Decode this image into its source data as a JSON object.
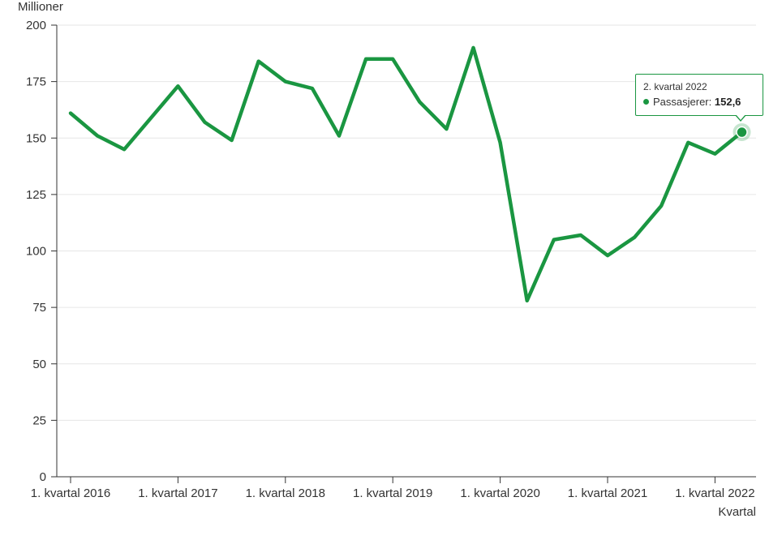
{
  "chart_data": {
    "type": "line",
    "ylabel": "Millioner",
    "xlabel": "Kvartal",
    "ylim": [
      0,
      200
    ],
    "yticks": [
      0,
      25,
      50,
      75,
      100,
      125,
      150,
      175,
      200
    ],
    "grid": "horizontal",
    "x": [
      "1. kvartal 2016",
      "2. kvartal 2016",
      "3. kvartal 2016",
      "4. kvartal 2016",
      "1. kvartal 2017",
      "2. kvartal 2017",
      "3. kvartal 2017",
      "4. kvartal 2017",
      "1. kvartal 2018",
      "2. kvartal 2018",
      "3. kvartal 2018",
      "4. kvartal 2018",
      "1. kvartal 2019",
      "2. kvartal 2019",
      "3. kvartal 2019",
      "4. kvartal 2019",
      "1. kvartal 2020",
      "2. kvartal 2020",
      "3. kvartal 2020",
      "4. kvartal 2020",
      "1. kvartal 2021",
      "2. kvartal 2021",
      "3. kvartal 2021",
      "4. kvartal 2021",
      "1. kvartal 2022",
      "2. kvartal 2022"
    ],
    "xtick_labels": [
      "1. kvartal 2016",
      "1. kvartal 2017",
      "1. kvartal 2018",
      "1. kvartal 2019",
      "1. kvartal 2020",
      "1. kvartal 2021",
      "1. kvartal 2022"
    ],
    "series": [
      {
        "name": "Passasjerer",
        "color": "#1a9641",
        "values": [
          161,
          151,
          145,
          159,
          173,
          157,
          149,
          184,
          175,
          172,
          151,
          185,
          185,
          166,
          154,
          190,
          148,
          78,
          105,
          107,
          98,
          106,
          120,
          148,
          143,
          152.6
        ]
      }
    ],
    "tooltip": {
      "title": "2. kvartal 2022",
      "series_label": "Passasjerer:",
      "value": "152,6"
    }
  }
}
